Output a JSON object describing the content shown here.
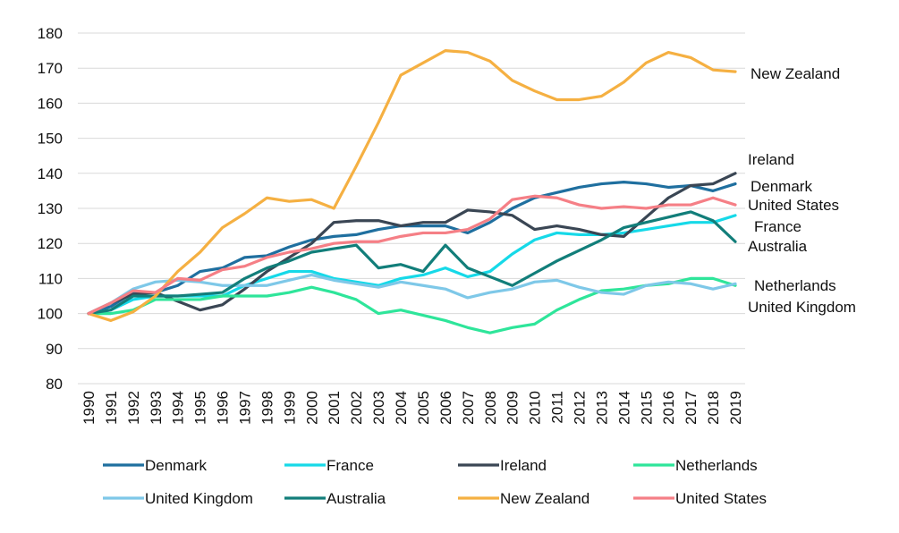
{
  "chart_data": {
    "type": "line",
    "title": "",
    "xlabel": "",
    "ylabel": "",
    "ylim": [
      80,
      180
    ],
    "yticks": [
      80,
      90,
      100,
      110,
      120,
      130,
      140,
      150,
      160,
      170,
      180
    ],
    "grid": "horizontal",
    "legend_position": "bottom",
    "x": [
      "1990",
      "1991",
      "1992",
      "1993",
      "1994",
      "1995",
      "1996",
      "1997",
      "1998",
      "1999",
      "2000",
      "2001",
      "2002",
      "2003",
      "2004",
      "2005",
      "2006",
      "2007",
      "2008",
      "2009",
      "2010",
      "2011",
      "2012",
      "2013",
      "2014",
      "2015",
      "2016",
      "2017",
      "2018",
      "2019"
    ],
    "series": [
      {
        "name": "Denmark",
        "color": "#1f6f9f",
        "values": [
          100,
          102,
          106,
          106,
          108,
          112,
          113,
          116,
          116.5,
          119,
          121,
          122,
          122.5,
          124,
          125,
          125,
          125,
          123,
          126,
          130,
          133,
          134.5,
          136,
          137,
          137.5,
          137,
          136,
          136.5,
          135,
          137
        ]
      },
      {
        "name": "France",
        "color": "#16d9e8",
        "values": [
          100,
          101,
          104,
          105,
          105,
          105,
          105,
          108,
          110,
          112,
          112,
          110,
          109,
          108,
          110,
          111,
          113,
          110.5,
          112,
          117,
          121,
          123,
          122.5,
          122.5,
          123,
          124,
          125,
          126,
          126,
          128
        ]
      },
      {
        "name": "Ireland",
        "color": "#3a4654",
        "values": [
          100,
          103,
          105.5,
          106,
          103.5,
          101,
          102.5,
          107,
          112,
          116,
          120,
          126,
          126.5,
          126.5,
          125,
          126,
          126,
          129.5,
          129,
          128,
          124,
          125,
          124,
          122.5,
          122,
          127.5,
          133,
          136.5,
          137,
          140
        ]
      },
      {
        "name": "Netherlands",
        "color": "#2ee59a",
        "values": [
          100,
          100,
          101,
          104,
          104,
          104,
          105,
          105,
          105,
          106,
          107.5,
          106,
          104,
          100,
          101,
          99.5,
          98,
          96,
          94.5,
          96,
          97,
          101,
          104,
          106.5,
          107,
          108,
          108.5,
          110,
          110,
          108
        ]
      },
      {
        "name": "United Kingdom",
        "color": "#7ec8e8",
        "values": [
          100,
          103,
          107,
          109,
          109.5,
          109,
          108,
          108,
          108,
          109.5,
          111,
          109.5,
          108.5,
          107.5,
          109,
          108,
          107,
          104.5,
          106,
          107,
          109,
          109.5,
          107.5,
          106,
          105.5,
          108,
          109,
          108.5,
          107,
          108.5
        ]
      },
      {
        "name": "Australia",
        "color": "#127e7a",
        "values": [
          100,
          101,
          105,
          105,
          105,
          105.5,
          106,
          110,
          113,
          115,
          117.5,
          118.5,
          119.5,
          113,
          114,
          112,
          119.5,
          113,
          110.5,
          108,
          111.5,
          115,
          118,
          121,
          124.5,
          126,
          127.5,
          129,
          126.5,
          120.5
        ]
      },
      {
        "name": "New Zealand",
        "color": "#f5b042",
        "values": [
          100,
          98,
          100.5,
          105,
          112,
          117.5,
          124.5,
          128.5,
          133,
          132,
          132.5,
          130,
          142,
          154.5,
          168,
          171.5,
          175,
          174.5,
          172,
          166.5,
          163.5,
          161,
          161,
          162,
          166,
          171.5,
          174.5,
          173,
          169.5,
          169
        ]
      },
      {
        "name": "United States",
        "color": "#f57f86",
        "values": [
          100,
          103,
          106.5,
          106,
          110,
          109.5,
          112.5,
          113.5,
          116,
          117.5,
          118.5,
          120,
          120.5,
          120.5,
          122,
          123,
          123,
          124,
          127,
          132.5,
          133.5,
          133,
          131,
          130,
          130.5,
          130,
          131,
          131,
          133,
          131
        ]
      }
    ],
    "end_labels": [
      {
        "text": "New Zealand",
        "series": "New Zealand"
      },
      {
        "text": "Ireland",
        "series": "Ireland"
      },
      {
        "text": "Denmark",
        "series": "Denmark"
      },
      {
        "text": "United States",
        "series": "United States"
      },
      {
        "text": "France",
        "series": "France"
      },
      {
        "text": "Australia",
        "series": "Australia"
      },
      {
        "text": "Netherlands",
        "series": "Netherlands"
      },
      {
        "text": "United Kingdom",
        "series": "United Kingdom"
      }
    ],
    "legend": [
      "Denmark",
      "France",
      "Ireland",
      "Netherlands",
      "United Kingdom",
      "Australia",
      "New Zealand",
      "United States"
    ]
  }
}
